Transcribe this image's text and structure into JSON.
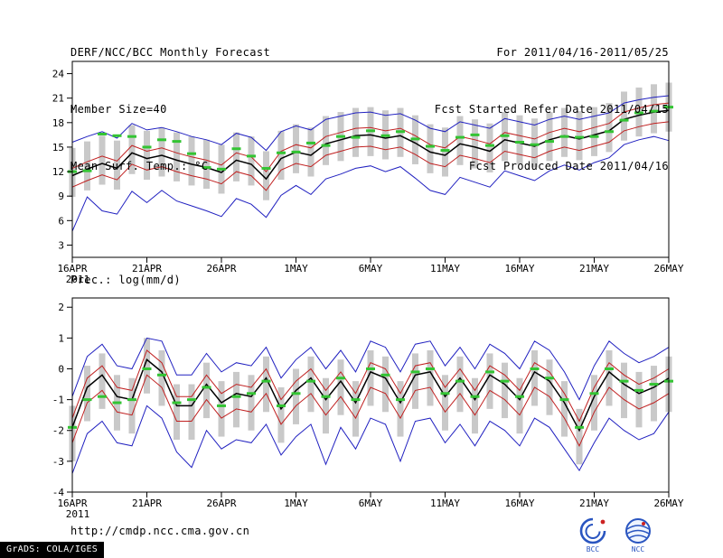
{
  "header": {
    "title": "DERF/NCC/BCC Monthly Forecast",
    "member_size": "Member Size=40",
    "right_line1": "For 2011/04/16-2011/05/25",
    "right_line2": "Fcst Started Refer Date 2011/04/15",
    "right_line3": "Fcst Produced Date 2011/04/16"
  },
  "footer": {
    "url": "http://cmdp.ncc.cma.gov.cn",
    "grads_credit": "GrADS: COLA/IGES",
    "bcc_logo_label": "BCC",
    "ncc_logo_label": "NCC"
  },
  "chart_data": [
    {
      "type": "line",
      "title": "Mean Surf. Temp.: °C",
      "xlabel": "",
      "ylabel": "",
      "ylim": [
        1.5,
        25.5
      ],
      "yticks": [
        24,
        21,
        18,
        15,
        12,
        9,
        6,
        3
      ],
      "x_tick_labels": [
        "16APR",
        "21APR",
        "26APR",
        "1MAY",
        "6MAY",
        "11MAY",
        "16MAY",
        "21MAY",
        "26MAY"
      ],
      "x_tick_positions": [
        0,
        5,
        10,
        15,
        20,
        25,
        30,
        35,
        40
      ],
      "year_label": "2011",
      "grid": false,
      "legend": "none",
      "series": [
        {
          "name": "ensemble-spread",
          "type": "bar",
          "color": "#c9c9c9",
          "lo": [
            8.9,
            9.7,
            10.4,
            9.8,
            11.7,
            11.0,
            11.4,
            10.8,
            10.3,
            9.9,
            9.3,
            10.8,
            10.3,
            8.5,
            11.0,
            11.8,
            11.4,
            12.8,
            13.3,
            13.8,
            13.9,
            13.5,
            13.8,
            12.9,
            11.8,
            11.4,
            12.8,
            12.4,
            11.9,
            13.3,
            12.9,
            12.5,
            13.3,
            13.8,
            13.4,
            13.9,
            14.4,
            15.8,
            16.3,
            16.7,
            16.9
          ],
          "hi": [
            14.9,
            15.7,
            16.4,
            15.8,
            17.7,
            17.0,
            17.4,
            16.8,
            16.3,
            15.9,
            15.3,
            16.8,
            16.3,
            14.5,
            17.0,
            17.8,
            17.4,
            18.8,
            19.3,
            19.8,
            19.9,
            19.5,
            19.8,
            18.9,
            17.8,
            17.4,
            18.8,
            18.4,
            17.9,
            19.3,
            18.9,
            18.5,
            19.3,
            19.8,
            19.4,
            19.9,
            20.4,
            21.8,
            22.3,
            22.7,
            22.9
          ]
        },
        {
          "name": "ensemble-max",
          "type": "line",
          "color": "#2020c0",
          "width": 1,
          "values": [
            15.6,
            16.3,
            16.9,
            16.1,
            17.9,
            17.1,
            17.4,
            16.9,
            16.3,
            15.9,
            15.3,
            16.7,
            16.2,
            14.6,
            16.9,
            17.6,
            17.1,
            18.4,
            18.8,
            19.2,
            19.3,
            18.9,
            19.1,
            18.3,
            17.3,
            16.9,
            18.1,
            17.7,
            17.3,
            18.5,
            18.1,
            17.7,
            18.4,
            18.8,
            18.4,
            18.8,
            19.2,
            20.4,
            20.8,
            21.1,
            21.3
          ]
        },
        {
          "name": "ensemble-min",
          "type": "line",
          "color": "#2020c0",
          "width": 1,
          "values": [
            4.7,
            8.9,
            7.2,
            6.8,
            9.6,
            8.2,
            9.7,
            8.4,
            7.8,
            7.2,
            6.5,
            8.7,
            8.0,
            6.4,
            9.1,
            10.3,
            9.2,
            11.1,
            11.7,
            12.4,
            12.7,
            12.0,
            12.6,
            11.2,
            9.7,
            9.2,
            11.3,
            10.7,
            10.1,
            12.1,
            11.5,
            10.9,
            12.1,
            12.8,
            12.2,
            13.1,
            13.7,
            15.3,
            15.9,
            16.3,
            15.8
          ]
        },
        {
          "name": "upper-quartile",
          "type": "line",
          "color": "#c02020",
          "width": 1,
          "values": [
            12.4,
            13.2,
            13.9,
            13.3,
            15.2,
            14.5,
            14.9,
            14.3,
            13.8,
            13.4,
            12.8,
            14.3,
            13.8,
            12.0,
            14.5,
            15.3,
            14.9,
            16.3,
            16.8,
            17.3,
            17.4,
            17.0,
            17.3,
            16.4,
            15.3,
            14.9,
            16.3,
            15.9,
            15.4,
            16.8,
            16.4,
            16.0,
            16.8,
            17.3,
            16.9,
            17.4,
            17.9,
            19.3,
            19.8,
            20.2,
            20.4
          ]
        },
        {
          "name": "lower-quartile",
          "type": "line",
          "color": "#c02020",
          "width": 1,
          "values": [
            10.1,
            10.9,
            11.6,
            11.0,
            12.9,
            12.2,
            12.6,
            12.0,
            11.5,
            11.1,
            10.5,
            12.0,
            11.5,
            9.7,
            12.2,
            13.0,
            12.6,
            14.0,
            14.5,
            15.0,
            15.1,
            14.7,
            15.0,
            14.1,
            13.0,
            12.6,
            14.0,
            13.6,
            13.1,
            14.5,
            14.1,
            13.7,
            14.5,
            15.0,
            14.6,
            15.1,
            15.6,
            17.0,
            17.5,
            17.9,
            18.1
          ]
        },
        {
          "name": "ensemble-mean",
          "type": "line",
          "color": "#000000",
          "width": 1.5,
          "values": [
            11.5,
            12.3,
            13.0,
            12.4,
            14.3,
            13.6,
            14.0,
            13.4,
            12.9,
            12.5,
            11.9,
            13.4,
            12.9,
            11.1,
            13.6,
            14.4,
            14.0,
            15.4,
            15.9,
            16.4,
            16.5,
            16.1,
            16.4,
            15.5,
            14.4,
            14.0,
            15.4,
            15.0,
            14.5,
            15.9,
            15.5,
            15.1,
            15.9,
            16.4,
            16.0,
            16.5,
            17.0,
            18.4,
            18.9,
            19.3,
            19.5
          ]
        },
        {
          "name": "daily-median-marks",
          "type": "dash",
          "color": "#33c433",
          "width": 3,
          "values": [
            12.0,
            12.1,
            16.6,
            16.4,
            16.3,
            15.0,
            15.9,
            15.7,
            14.2,
            12.5,
            12.3,
            14.8,
            13.9,
            12.4,
            14.3,
            14.4,
            15.5,
            15.2,
            16.3,
            16.2,
            17.0,
            16.4,
            16.9,
            16.0,
            15.1,
            14.6,
            16.2,
            16.5,
            15.2,
            16.4,
            15.6,
            15.3,
            15.7,
            16.3,
            16.2,
            16.3,
            16.9,
            18.3,
            19.2,
            19.4,
            19.9
          ]
        }
      ]
    },
    {
      "type": "line",
      "title": "Prec.: log(mm/d)",
      "xlabel": "",
      "ylabel": "",
      "ylim": [
        -4,
        2.3
      ],
      "yticks": [
        2,
        1,
        0,
        -1,
        -2,
        -3,
        -4
      ],
      "x_tick_labels": [
        "16APR",
        "21APR",
        "26APR",
        "1MAY",
        "6MAY",
        "11MAY",
        "16MAY",
        "21MAY",
        "26MAY"
      ],
      "x_tick_positions": [
        0,
        5,
        10,
        15,
        20,
        25,
        30,
        35,
        40
      ],
      "year_label": "2011",
      "grid": false,
      "legend": "none",
      "series": [
        {
          "name": "ensemble-spread",
          "type": "bar",
          "color": "#c9c9c9",
          "lo": [
            -3.0,
            -1.7,
            -1.3,
            -2.0,
            -2.1,
            -0.8,
            -1.2,
            -2.3,
            -2.3,
            -1.6,
            -2.2,
            -1.9,
            -2.0,
            -1.4,
            -2.4,
            -1.8,
            -1.4,
            -2.1,
            -1.5,
            -2.2,
            -1.2,
            -1.4,
            -2.2,
            -1.3,
            -1.2,
            -2.0,
            -1.4,
            -2.1,
            -1.3,
            -1.6,
            -2.1,
            -1.2,
            -1.5,
            -2.2,
            -3.1,
            -2.0,
            -1.2,
            -1.6,
            -1.9,
            -1.7,
            -1.4
          ],
          "hi": [
            -1.2,
            0.1,
            0.5,
            -0.2,
            -0.3,
            1.0,
            0.6,
            -0.5,
            -0.5,
            0.2,
            -0.4,
            -0.1,
            -0.2,
            0.4,
            -0.6,
            0.0,
            0.4,
            -0.3,
            0.3,
            -0.4,
            0.6,
            0.4,
            -0.4,
            0.5,
            0.6,
            -0.2,
            0.4,
            -0.3,
            0.5,
            0.2,
            -0.3,
            0.6,
            0.3,
            -0.4,
            -1.3,
            -0.2,
            0.6,
            0.2,
            -0.1,
            0.1,
            0.4
          ]
        },
        {
          "name": "ensemble-max",
          "type": "line",
          "color": "#2020c0",
          "width": 1,
          "values": [
            -0.9,
            0.4,
            0.8,
            0.1,
            0.0,
            1.0,
            0.9,
            -0.2,
            -0.2,
            0.5,
            -0.1,
            0.2,
            0.1,
            0.7,
            -0.3,
            0.3,
            0.7,
            0.0,
            0.6,
            -0.1,
            0.9,
            0.7,
            -0.1,
            0.8,
            0.9,
            0.1,
            0.7,
            0.0,
            0.8,
            0.5,
            0.0,
            0.9,
            0.6,
            -0.1,
            -1.0,
            0.1,
            0.9,
            0.5,
            0.2,
            0.4,
            0.7
          ]
        },
        {
          "name": "ensemble-min",
          "type": "line",
          "color": "#2020c0",
          "width": 1,
          "values": [
            -3.4,
            -2.1,
            -1.7,
            -2.4,
            -2.5,
            -1.2,
            -1.6,
            -2.7,
            -3.2,
            -2.0,
            -2.6,
            -2.3,
            -2.4,
            -1.8,
            -2.8,
            -2.2,
            -1.8,
            -3.1,
            -1.9,
            -2.6,
            -1.6,
            -1.8,
            -3.0,
            -1.7,
            -1.6,
            -2.4,
            -1.8,
            -2.5,
            -1.7,
            -2.0,
            -2.5,
            -1.6,
            -1.9,
            -2.6,
            -3.3,
            -2.4,
            -1.6,
            -2.0,
            -2.3,
            -2.1,
            -1.4
          ]
        },
        {
          "name": "upper-quartile",
          "type": "line",
          "color": "#c02020",
          "width": 1,
          "values": [
            -1.6,
            -0.3,
            0.1,
            -0.6,
            -0.7,
            0.6,
            0.2,
            -0.9,
            -0.9,
            -0.2,
            -0.8,
            -0.5,
            -0.6,
            0.0,
            -1.0,
            -0.4,
            0.0,
            -0.7,
            -0.1,
            -0.8,
            0.2,
            0.0,
            -0.8,
            0.1,
            0.2,
            -0.6,
            0.0,
            -0.7,
            0.1,
            -0.2,
            -0.7,
            0.2,
            -0.1,
            -0.8,
            -1.7,
            -0.6,
            0.2,
            -0.2,
            -0.5,
            -0.3,
            0.0
          ]
        },
        {
          "name": "lower-quartile",
          "type": "line",
          "color": "#c02020",
          "width": 1,
          "values": [
            -2.4,
            -1.1,
            -0.7,
            -1.4,
            -1.5,
            -0.2,
            -0.6,
            -1.7,
            -1.7,
            -1.0,
            -1.6,
            -1.3,
            -1.4,
            -0.8,
            -1.8,
            -1.2,
            -0.8,
            -1.5,
            -0.9,
            -1.6,
            -0.6,
            -0.8,
            -1.6,
            -0.7,
            -0.6,
            -1.4,
            -0.8,
            -1.5,
            -0.7,
            -1.0,
            -1.5,
            -0.6,
            -0.9,
            -1.6,
            -2.5,
            -1.4,
            -0.6,
            -1.0,
            -1.3,
            -1.1,
            -0.8
          ]
        },
        {
          "name": "ensemble-mean",
          "type": "line",
          "color": "#000000",
          "width": 1.5,
          "values": [
            -1.9,
            -0.6,
            -0.2,
            -0.9,
            -1.0,
            0.3,
            -0.1,
            -1.2,
            -1.2,
            -0.5,
            -1.1,
            -0.8,
            -0.9,
            -0.3,
            -1.3,
            -0.7,
            -0.3,
            -1.0,
            -0.4,
            -1.1,
            -0.1,
            -0.3,
            -1.1,
            -0.2,
            -0.1,
            -0.9,
            -0.3,
            -1.0,
            -0.2,
            -0.5,
            -1.0,
            -0.1,
            -0.4,
            -1.1,
            -2.0,
            -0.9,
            -0.1,
            -0.5,
            -0.8,
            -0.6,
            -0.3
          ]
        },
        {
          "name": "daily-median-marks",
          "type": "dash",
          "color": "#33c433",
          "width": 3,
          "values": [
            -1.9,
            -1.0,
            -0.9,
            -1.1,
            -1.0,
            0.0,
            -0.2,
            -1.1,
            -1.0,
            -0.6,
            -1.2,
            -0.9,
            -0.8,
            -0.4,
            -1.2,
            -0.8,
            -0.4,
            -0.9,
            -0.3,
            -1.0,
            0.0,
            -0.2,
            -1.0,
            -0.1,
            0.0,
            -0.8,
            -0.4,
            -0.9,
            -0.1,
            -0.4,
            -0.9,
            0.0,
            -0.3,
            -1.0,
            -1.9,
            -0.8,
            0.0,
            -0.4,
            -0.7,
            -0.5,
            -0.4
          ]
        }
      ]
    }
  ]
}
